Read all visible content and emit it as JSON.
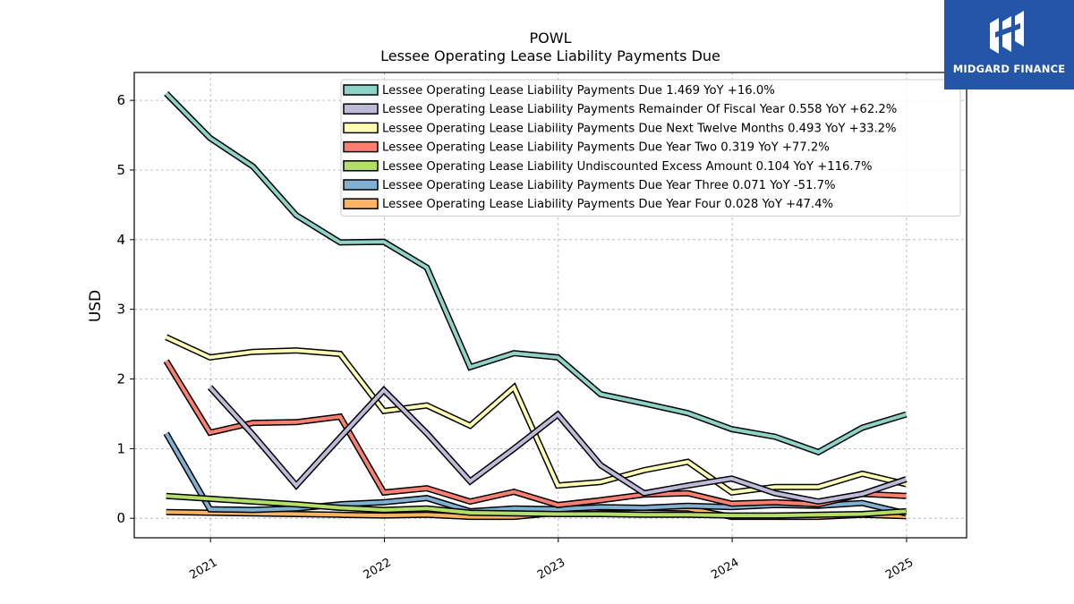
{
  "logo": {
    "text": "MIDGARD FINANCE",
    "background": "#2456a8"
  },
  "chart_data": {
    "type": "line",
    "title": "POWL",
    "subtitle": "Lessee Operating Lease Liability Payments Due",
    "ylabel": "USD",
    "xlabel": "",
    "ylim": [
      -0.28,
      6.4
    ],
    "yticks": [
      0,
      1,
      2,
      3,
      4,
      5,
      6
    ],
    "xticks": [
      "2021",
      "2022",
      "2023",
      "2024",
      "2025"
    ],
    "grid": true,
    "legend_position": "top-right",
    "x": [
      "2020-09-30",
      "2020-12-31",
      "2021-03-31",
      "2021-06-30",
      "2021-09-30",
      "2021-12-31",
      "2022-03-31",
      "2022-06-30",
      "2022-09-30",
      "2022-12-31",
      "2023-03-31",
      "2023-06-30",
      "2023-09-30",
      "2023-12-31",
      "2024-03-31",
      "2024-06-30",
      "2024-09-30",
      "2024-12-31"
    ],
    "series": [
      {
        "name": "Lessee Operating Lease Liability Payments Due",
        "legend_label": "Lessee Operating Lease Liability Payments Due  1.469 YoY +16.0%",
        "color": "#8dd3c7",
        "values": [
          6.1,
          5.46,
          5.05,
          4.35,
          3.96,
          3.97,
          3.6,
          2.17,
          2.37,
          2.31,
          1.78,
          1.65,
          1.51,
          1.28,
          1.17,
          0.95,
          1.3,
          1.49
        ]
      },
      {
        "name": "Lessee Operating Lease Liability Payments Remainder Of Fiscal Year",
        "legend_label": "Lessee Operating Lease Liability Payments Remainder Of Fiscal Year  0.558 YoY +62.2%",
        "color": "#bebada",
        "values": [
          null,
          1.88,
          1.2,
          0.47,
          1.16,
          1.84,
          1.22,
          0.53,
          1.0,
          1.49,
          0.76,
          0.36,
          0.47,
          0.57,
          0.36,
          0.24,
          0.35,
          0.56
        ]
      },
      {
        "name": "Lessee Operating Lease Liability Payments Due Next Twelve Months",
        "legend_label": "Lessee Operating Lease Liability Payments Due Next Twelve Months  0.493 YoY +33.2%",
        "color": "#ffffb3",
        "values": [
          2.6,
          2.31,
          2.39,
          2.41,
          2.36,
          1.54,
          1.62,
          1.33,
          1.88,
          0.47,
          0.52,
          0.69,
          0.81,
          0.37,
          0.45,
          0.45,
          0.64,
          0.49
        ]
      },
      {
        "name": "Lessee Operating Lease Liability Payments Due Year Two",
        "legend_label": "Lessee Operating Lease Liability Payments Due Year Two  0.319 YoY +77.2%",
        "color": "#fb8072",
        "values": [
          2.26,
          1.23,
          1.37,
          1.38,
          1.46,
          0.37,
          0.43,
          0.24,
          0.38,
          0.19,
          0.26,
          0.34,
          0.36,
          0.21,
          0.23,
          0.2,
          0.35,
          0.32
        ]
      },
      {
        "name": "Lessee Operating Lease Liability Undiscounted Excess Amount",
        "legend_label": "Lessee Operating Lease Liability Undiscounted Excess Amount  0.104 YoY +116.7%",
        "color": "#b3de69",
        "values": [
          0.32,
          0.28,
          0.24,
          0.2,
          0.15,
          0.12,
          0.14,
          0.08,
          0.07,
          0.06,
          0.06,
          0.05,
          0.05,
          0.04,
          0.04,
          0.05,
          0.06,
          0.1
        ]
      },
      {
        "name": "Lessee Operating Lease Liability Payments Due Year Three",
        "legend_label": "Lessee Operating Lease Liability Payments Due Year Three  0.071 YoY -51.7%",
        "color": "#80b1d3",
        "values": [
          1.22,
          0.13,
          0.12,
          0.14,
          0.2,
          0.23,
          0.29,
          0.1,
          0.14,
          0.13,
          0.16,
          0.15,
          0.18,
          0.16,
          0.19,
          0.18,
          0.22,
          0.07
        ]
      },
      {
        "name": "Lessee Operating Lease Liability Payments Due Year Four",
        "legend_label": "Lessee Operating Lease Liability Payments Due Year Four  0.028 YoY +47.4%",
        "color": "#fdb462",
        "values": [
          0.09,
          0.08,
          0.07,
          0.06,
          0.05,
          0.04,
          0.05,
          0.02,
          0.02,
          0.08,
          0.14,
          0.15,
          0.14,
          0.02,
          0.02,
          0.02,
          0.05,
          0.03
        ]
      }
    ]
  }
}
